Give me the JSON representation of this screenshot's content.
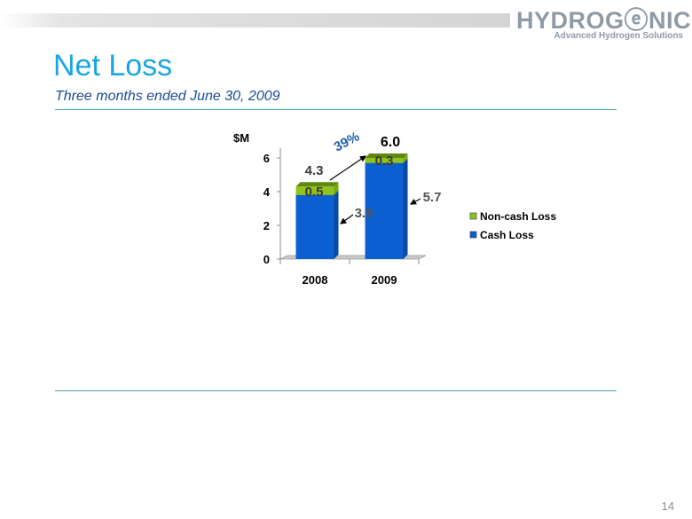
{
  "logo": {
    "wordmark": "HYDROGⓔNICS",
    "tagline": "Advanced Hydrogen Solutions"
  },
  "slide": {
    "title": "Net Loss",
    "subtitle": "Three months ended  June 30, 2009",
    "page_number": "14"
  },
  "chart_data": {
    "type": "bar",
    "stacked": true,
    "unit_label": "$M",
    "categories": [
      "2008",
      "2009"
    ],
    "series": [
      {
        "name": "Cash Loss",
        "values": [
          3.8,
          5.7
        ],
        "color": "#0b5fd0"
      },
      {
        "name": "Non-cash Loss",
        "values": [
          0.5,
          0.3
        ],
        "color": "#8ec21c"
      }
    ],
    "totals": [
      "4.3",
      "6.0"
    ],
    "cash_labels": [
      "3.8",
      "5.7"
    ],
    "noncash_labels": [
      "0.5",
      "0.3"
    ],
    "change_label": "39%",
    "yticks": [
      0,
      2,
      4,
      6
    ],
    "ylim": [
      0,
      6.6
    ],
    "legend_position": "right",
    "grid": false
  },
  "colors": {
    "title": "#19a6de",
    "subtitle": "#1a4b96",
    "change": "#1f5fb0",
    "rule": "#4aa7a0"
  }
}
